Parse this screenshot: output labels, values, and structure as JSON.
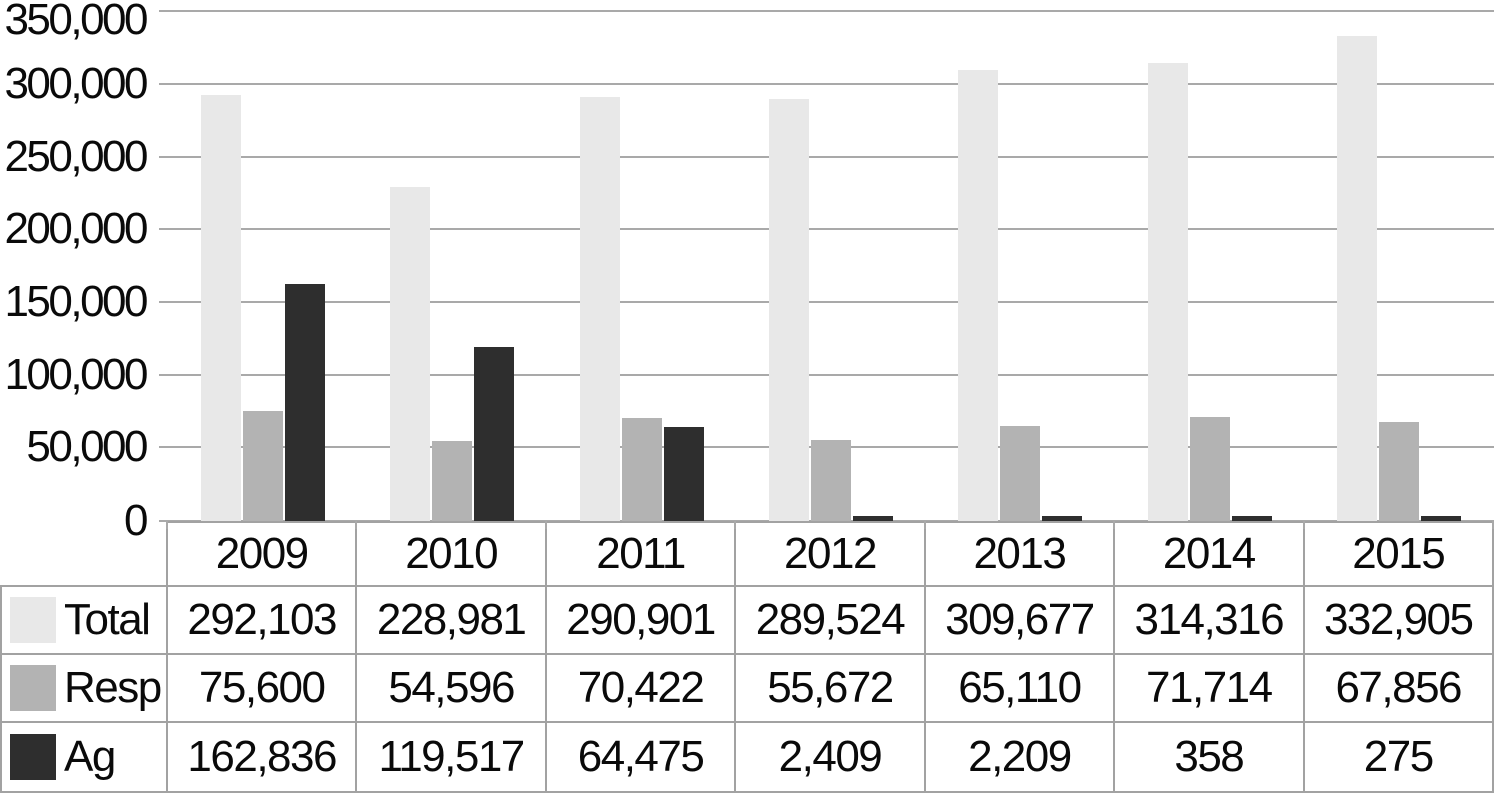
{
  "chart_data": {
    "type": "bar",
    "title": "",
    "xlabel": "",
    "ylabel": "",
    "categories": [
      "2009",
      "2010",
      "2011",
      "2012",
      "2013",
      "2014",
      "2015"
    ],
    "series": [
      {
        "name": "Total",
        "color": "#e8e8e8",
        "values": [
          292103,
          228981,
          290901,
          289524,
          309677,
          314316,
          332905
        ]
      },
      {
        "name": "Resp",
        "color": "#b3b3b3",
        "values": [
          75600,
          54596,
          70422,
          55672,
          65110,
          71714,
          67856
        ]
      },
      {
        "name": "Ag",
        "color": "#2e2e2e",
        "values": [
          162836,
          119517,
          64475,
          2409,
          2209,
          358,
          275
        ]
      }
    ],
    "ylim": [
      0,
      350000
    ],
    "ytick_interval": 50000,
    "ytick_labels": [
      "350,000",
      "300,000",
      "250,000",
      "200,000",
      "150,000",
      "100,000",
      "50,000",
      "0"
    ],
    "grid": true,
    "gridline_color": "#a9a9a9",
    "legend_position": "table-rows-left"
  },
  "table": {
    "header": [
      "2009",
      "2010",
      "2011",
      "2012",
      "2013",
      "2014",
      "2015"
    ],
    "rows": [
      {
        "label": "Total",
        "values": [
          "292,103",
          "228,981",
          "290,901",
          "289,524",
          "309,677",
          "314,316",
          "332,905"
        ]
      },
      {
        "label": "Resp",
        "values": [
          "75,600",
          "54,596",
          "70,422",
          "55,672",
          "65,110",
          "71,714",
          "67,856"
        ]
      },
      {
        "label": "Ag",
        "values": [
          "162,836",
          "119,517",
          "64,475",
          "2,409",
          "2,209",
          "358",
          "275"
        ]
      }
    ]
  }
}
